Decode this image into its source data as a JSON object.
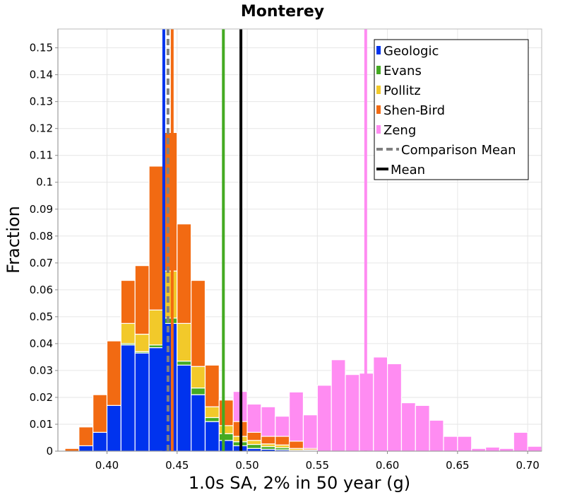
{
  "chart_data": {
    "type": "bar",
    "stacked": true,
    "title": "Monterey",
    "xlabel": "1.0s SA, 2% in 50 year (g)",
    "ylabel": "Fraction",
    "xlim": [
      0.365,
      0.71
    ],
    "ylim": [
      0,
      0.157
    ],
    "bin_width": 0.01,
    "x_ticks": [
      "0.40",
      "0.45",
      "0.50",
      "0.55",
      "0.60",
      "0.65",
      "0.70"
    ],
    "x_tick_values": [
      0.4,
      0.45,
      0.5,
      0.55,
      0.6,
      0.65,
      0.7
    ],
    "y_ticks": [
      "0",
      "0.01",
      "0.02",
      "0.03",
      "0.04",
      "0.05",
      "0.06",
      "0.07",
      "0.08",
      "0.09",
      "0.1",
      "0.11",
      "0.12",
      "0.13",
      "0.14",
      "0.15"
    ],
    "y_tick_values": [
      0,
      0.01,
      0.02,
      0.03,
      0.04,
      0.05,
      0.06,
      0.07,
      0.08,
      0.09,
      0.1,
      0.11,
      0.12,
      0.13,
      0.14,
      0.15
    ],
    "grid": true,
    "legend_position": "top-right",
    "stack_bins": [
      0.375,
      0.385,
      0.395,
      0.405,
      0.415,
      0.425,
      0.435,
      0.445,
      0.455,
      0.465,
      0.475,
      0.485,
      0.495,
      0.505,
      0.515,
      0.525,
      0.535,
      0.545
    ],
    "series": [
      {
        "name": "Geologic",
        "color": "#0033ee",
        "values": [
          0,
          0.002,
          0.007,
          0.017,
          0.0395,
          0.0365,
          0.0385,
          0.0475,
          0.032,
          0.021,
          0.011,
          0.004,
          0.002,
          0.001,
          0.0007,
          0.0005,
          0,
          0
        ]
      },
      {
        "name": "Evans",
        "color": "#44aa22",
        "values": [
          0,
          0,
          0,
          0,
          0.0005,
          0.0005,
          0.001,
          0.002,
          0.0015,
          0.0025,
          0.0015,
          0.0025,
          0.0015,
          0.0015,
          0.001,
          0.0008,
          0.0003,
          0.0002
        ]
      },
      {
        "name": "Pollitz",
        "color": "#f2c92a",
        "values": [
          0,
          0,
          0,
          0,
          0.0075,
          0.0065,
          0.013,
          0.0175,
          0.014,
          0.008,
          0.004,
          0.003,
          0.002,
          0.0015,
          0.001,
          0.001,
          0.0007,
          0.0003
        ]
      },
      {
        "name": "Shen-Bird",
        "color": "#f26a12",
        "values": [
          0.001,
          0.007,
          0.014,
          0.024,
          0.016,
          0.0255,
          0.0535,
          0.0515,
          0.037,
          0.032,
          0.0155,
          0.0095,
          0.0055,
          0.003,
          0.0028,
          0.0032,
          0.0027,
          0.0005
        ]
      }
    ],
    "zeng": {
      "name": "Zeng",
      "color": "#ff8cf2",
      "bins": [
        0.495,
        0.505,
        0.515,
        0.525,
        0.535,
        0.545,
        0.555,
        0.565,
        0.575,
        0.585,
        0.595,
        0.605,
        0.615,
        0.625,
        0.635,
        0.645,
        0.655,
        0.665,
        0.675,
        0.685,
        0.695,
        0.705
      ],
      "values": [
        0.0222,
        0.0175,
        0.0165,
        0.013,
        0.022,
        0.0135,
        0.0245,
        0.034,
        0.0285,
        0.029,
        0.035,
        0.0325,
        0.018,
        0.017,
        0.0115,
        0.0055,
        0.0055,
        0.001,
        0.0015,
        0.001,
        0.007,
        0.0018
      ]
    },
    "vertical_lines": [
      {
        "series": "Geologic",
        "x": 0.4405,
        "color": "#0033ee",
        "style": "solid"
      },
      {
        "series": "Shen-Bird",
        "x": 0.4465,
        "color": "#f26a12",
        "style": "solid"
      },
      {
        "series": "Comparison Mean",
        "x": 0.4435,
        "color": "#808080",
        "style": "dashed"
      },
      {
        "series": "Evans",
        "x": 0.483,
        "color": "#44aa22",
        "style": "solid"
      },
      {
        "series": "Mean",
        "x": 0.4955,
        "color": "#000000",
        "style": "solid"
      },
      {
        "series": "Zeng",
        "x": 0.5845,
        "color": "#ff8cf2",
        "style": "solid"
      }
    ],
    "legend": [
      {
        "label": "Geologic",
        "kind": "box",
        "color": "#0033ee"
      },
      {
        "label": "Evans",
        "kind": "box",
        "color": "#44aa22"
      },
      {
        "label": "Pollitz",
        "kind": "box",
        "color": "#f2c92a"
      },
      {
        "label": "Shen-Bird",
        "kind": "box",
        "color": "#f26a12"
      },
      {
        "label": "Zeng",
        "kind": "box",
        "color": "#ff8cf2"
      },
      {
        "label": "Comparison Mean",
        "kind": "dashed",
        "color": "#808080"
      },
      {
        "label": "Mean",
        "kind": "line",
        "color": "#000000"
      }
    ]
  }
}
